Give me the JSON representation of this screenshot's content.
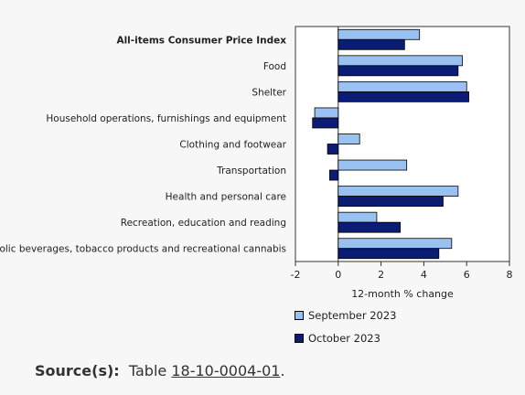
{
  "chart_data": {
    "type": "bar",
    "orientation": "horizontal",
    "categories": [
      "All-items Consumer Price Index",
      "Food",
      "Shelter",
      "Household operations, furnishings and equipment",
      "Clothing and footwear",
      "Transportation",
      "Health and personal care",
      "Recreation, education and reading",
      "Alcoholic beverages, tobacco products and recreational cannabis"
    ],
    "series": [
      {
        "name": "September 2023",
        "color": "#99c2f2",
        "values": [
          3.8,
          5.8,
          6.0,
          -1.1,
          1.0,
          3.2,
          5.6,
          1.8,
          5.3
        ]
      },
      {
        "name": "October 2023",
        "color": "#0b1c75",
        "values": [
          3.1,
          5.6,
          6.1,
          -1.2,
          -0.5,
          -0.4,
          4.9,
          2.9,
          4.7
        ]
      }
    ],
    "xlabel": "12-month % change",
    "xlim": [
      -2,
      8
    ],
    "xticks": [
      "-2",
      "0",
      "2",
      "4",
      "6",
      "8"
    ],
    "legend_position": "bottom",
    "grid": false
  },
  "source": {
    "label": "Source(s):",
    "text": "Table",
    "link": "18-10-0004-01",
    "end": "."
  }
}
